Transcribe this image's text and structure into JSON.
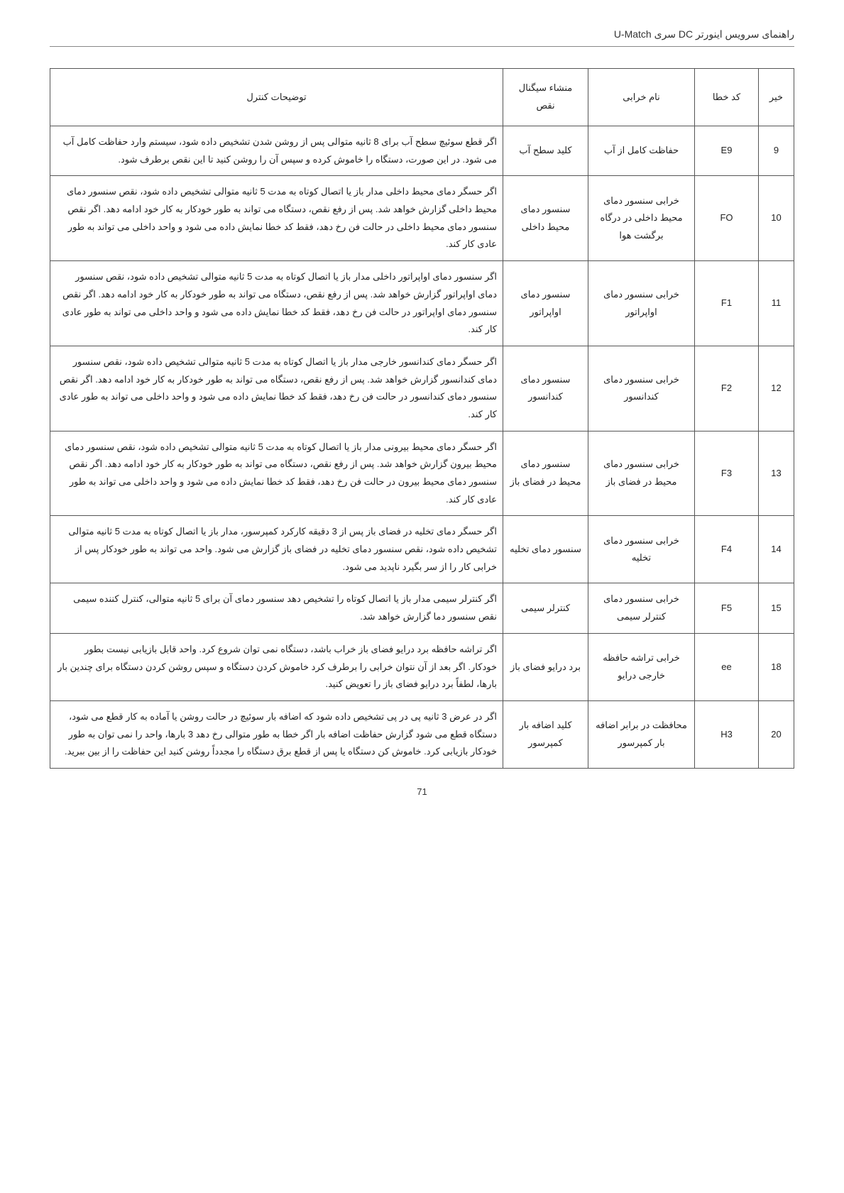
{
  "header": {
    "title": "راهنمای سرویس اینورتر DC سری U-Match"
  },
  "table": {
    "columns": [
      {
        "key": "num",
        "label": "خیر"
      },
      {
        "key": "code",
        "label": "کد خطا"
      },
      {
        "key": "name",
        "label": "نام خرابی"
      },
      {
        "key": "src",
        "label": "منشاء سیگنال نقص"
      },
      {
        "key": "desc",
        "label": "توضیحات کنترل"
      }
    ],
    "rows": [
      {
        "num": "9",
        "code": "E9",
        "name": "حفاظت کامل از آب",
        "src": "کلید سطح آب",
        "desc": "اگر قطع سوئیچ سطح آب برای 8 ثانیه متوالی پس از روشن شدن تشخیص داده شود، سیستم وارد حفاظت کامل آب می شود. در این صورت، دستگاه را خاموش کرده و سپس آن را روشن کنید تا این نقص برطرف شود."
      },
      {
        "num": "10",
        "code": "FO",
        "name": "خرابی سنسور دمای محیط داخلی در درگاه برگشت هوا",
        "src": "سنسور دمای محیط داخلی",
        "desc": "اگر حسگر دمای محیط داخلی مدار باز یا اتصال کوتاه به مدت 5 ثانیه متوالی تشخیص داده شود، نقص سنسور دمای محیط داخلی گزارش خواهد شد. پس از رفع نقص، دستگاه می تواند به طور خودکار به کار خود ادامه دهد. اگر نقص سنسور دمای محیط داخلی در حالت فن رخ دهد، فقط کد خطا نمایش داده می شود و واحد داخلی می تواند به طور عادی کار کند."
      },
      {
        "num": "11",
        "code": "F1",
        "name": "خرابی سنسور دمای اواپراتور",
        "src": "سنسور دمای اواپراتور",
        "desc": "اگر سنسور دمای اواپراتور داخلی مدار باز یا اتصال کوتاه به مدت 5 ثانیه متوالی تشخیص داده شود، نقص سنسور دمای اواپراتور گزارش خواهد شد. پس از رفع نقص، دستگاه می تواند به طور خودکار به کار خود ادامه دهد. اگر نقص سنسور دمای اواپراتور در حالت فن رخ دهد، فقط کد خطا نمایش داده می شود و واحد داخلی می تواند به طور عادی کار کند."
      },
      {
        "num": "12",
        "code": "F2",
        "name": "خرابی سنسور دمای کندانسور",
        "src": "سنسور دمای کندانسور",
        "desc": "اگر حسگر دمای کندانسور خارجی مدار باز یا اتصال کوتاه به مدت 5 ثانیه متوالی تشخیص داده شود، نقص سنسور دمای کندانسور گزارش خواهد شد. پس از رفع نقص، دستگاه می تواند به طور خودکار به کار خود ادامه دهد. اگر نقص سنسور دمای کندانسور در حالت فن رخ دهد، فقط کد خطا نمایش داده می شود و واحد داخلی می تواند به طور عادی کار کند."
      },
      {
        "num": "13",
        "code": "F3",
        "name": "خرابی سنسور دمای محیط در فضای باز",
        "src": "سنسور دمای محیط در فضای باز",
        "desc": "اگر حسگر دمای محیط بیرونی مدار باز یا اتصال کوتاه به مدت 5 ثانیه متوالی تشخیص داده شود، نقص سنسور دمای محیط بیرون گزارش خواهد شد. پس از رفع نقص، دستگاه می تواند به طور خودکار به کار خود ادامه دهد. اگر نقص سنسور دمای محیط بیرون در حالت فن رخ دهد، فقط کد خطا نمایش داده می شود و واحد داخلی می تواند به طور عادی کار کند."
      },
      {
        "num": "14",
        "code": "F4",
        "name": "خرابی سنسور دمای تخلیه",
        "src": "سنسور دمای تخلیه",
        "desc": "اگر حسگر دمای تخلیه در فضای باز پس از 3 دقیقه کارکرد کمپرسور، مدار باز یا اتصال کوتاه به مدت 5 ثانیه متوالی تشخیص داده شود، نقص سنسور دمای تخلیه در فضای باز گزارش می شود. واحد می تواند به طور خودکار پس از خرابی کار را از سر بگیرد ناپدید می شود."
      },
      {
        "num": "15",
        "code": "F5",
        "name": "خرابی سنسور دمای کنترلر سیمی",
        "src": "کنترلر سیمی",
        "desc": "اگر کنترلر سیمی مدار باز یا اتصال کوتاه را تشخیص دهد سنسور دمای آن برای 5 ثانیه متوالی، کنترل کننده سیمی نقص سنسور دما گزارش خواهد شد."
      },
      {
        "num": "18",
        "code": "ee",
        "name": "خرابی تراشه حافظه خارجی درایو",
        "src": "برد درایو فضای باز",
        "desc": "اگر تراشه حافظه برد درایو فضای باز خراب باشد، دستگاه نمی توان شروع کرد. واحد قابل بازیابی نیست بطور خودکار. اگر بعد از آن نتوان خرابی را برطرف کرد خاموش کردن دستگاه و سپس روشن کردن دستگاه برای چندین بار بارها، لطفاً برد درایو فضای باز را تعویض کنید."
      },
      {
        "num": "20",
        "code": "H3",
        "name": "محافظت در برابر اضافه بار کمپرسور",
        "src": "کلید اضافه بار کمپرسور",
        "desc": "اگر در عرض 3 ثانیه پی در پی تشخیص داده شود که اضافه بار سوئیچ در حالت روشن یا آماده به کار قطع می شود، دستگاه قطع می شود گزارش حفاظت اضافه بار اگر خطا به طور متوالی رخ دهد 3 بارها، واحد را نمی توان به طور خودکار بازیابی کرد. خاموش کن دستگاه یا پس از قطع برق دستگاه را مجدداً روشن کنید این حفاظت را از بین ببرید."
      }
    ]
  },
  "footer": {
    "page_number": "71"
  }
}
